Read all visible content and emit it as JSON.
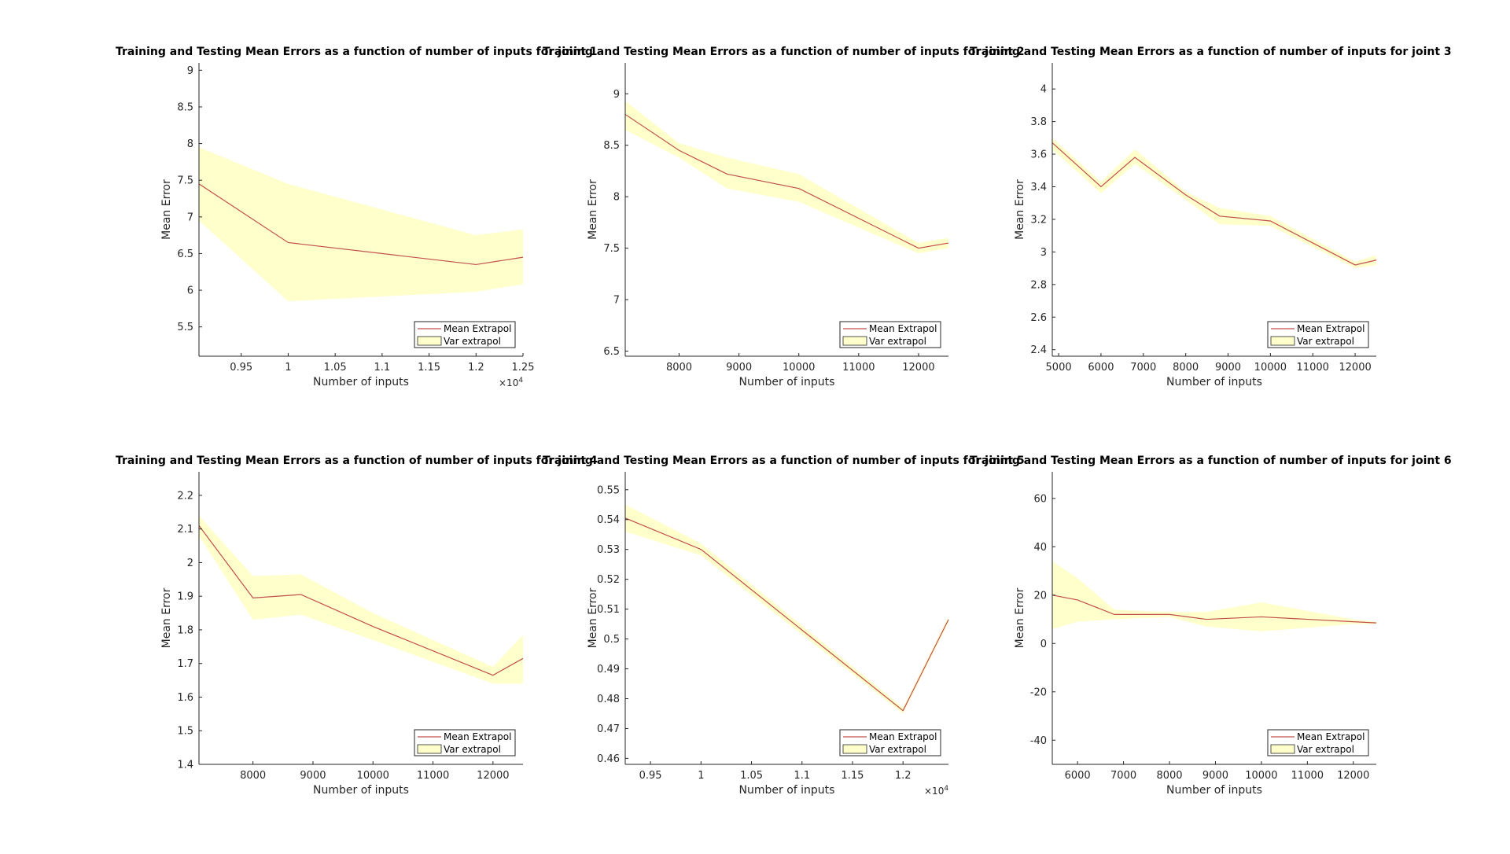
{
  "colors": {
    "line": "#c0504d",
    "band": "#ffffcc",
    "band_edge": "#f0e87a",
    "axis": "#262626"
  },
  "legend": {
    "mean_label": "Mean Extrapol",
    "var_label": "Var extrapol"
  },
  "chart_data": [
    {
      "type": "line",
      "title": "Training and Testing Mean Errors as a function of number of inputs for joint 1",
      "xlabel": "Number of inputs",
      "ylabel": "Mean Error",
      "xlim": [
        9050,
        12500
      ],
      "ylim": [
        5.1,
        9.1
      ],
      "xticks": [
        9500,
        10000,
        10500,
        11000,
        11500,
        12000,
        12500
      ],
      "xtick_labels": [
        "0.95",
        "1",
        "1.05",
        "1.1",
        "1.15",
        "1.2",
        "1.25"
      ],
      "x_exponent": "10^4",
      "yticks": [
        5.5,
        6,
        6.5,
        7,
        7.5,
        8,
        8.5,
        9
      ],
      "ytick_labels": [
        "5.5",
        "6",
        "6.5",
        "7",
        "7.5",
        "8",
        "8.5",
        "9"
      ],
      "legend_location": "bottom-right",
      "grid": false,
      "x": [
        9050,
        10000,
        12000,
        12500
      ],
      "series": [
        {
          "name": "Mean Extrapol",
          "values": [
            7.45,
            6.65,
            6.35,
            6.45
          ]
        },
        {
          "name": "Var extrapol",
          "upper": [
            7.95,
            7.45,
            6.75,
            6.83
          ],
          "lower": [
            6.95,
            5.85,
            5.98,
            6.08
          ]
        }
      ]
    },
    {
      "type": "line",
      "title": "Training and Testing Mean Errors as a function of number of inputs for joint 2",
      "xlabel": "Number of inputs",
      "ylabel": "Mean Error",
      "xlim": [
        7100,
        12500
      ],
      "ylim": [
        6.45,
        9.3
      ],
      "xticks": [
        8000,
        9000,
        10000,
        11000,
        12000
      ],
      "xtick_labels": [
        "8000",
        "9000",
        "10000",
        "11000",
        "12000"
      ],
      "x_exponent": "",
      "yticks": [
        6.5,
        7,
        7.5,
        8,
        8.5,
        9
      ],
      "ytick_labels": [
        "6.5",
        "7",
        "7.5",
        "8",
        "8.5",
        "9"
      ],
      "legend_location": "bottom-right",
      "grid": false,
      "x": [
        7100,
        8000,
        8800,
        10000,
        12000,
        12500
      ],
      "series": [
        {
          "name": "Mean Extrapol",
          "values": [
            8.8,
            8.45,
            8.22,
            8.08,
            7.5,
            7.55
          ]
        },
        {
          "name": "Var extrapol",
          "upper": [
            8.93,
            8.52,
            8.38,
            8.22,
            7.55,
            7.6
          ],
          "lower": [
            8.65,
            8.38,
            8.08,
            7.95,
            7.45,
            7.5
          ]
        }
      ]
    },
    {
      "type": "line",
      "title": "Training and Testing Mean Errors as a function of number of inputs for joint 3",
      "xlabel": "Number of inputs",
      "ylabel": "Mean Error",
      "xlim": [
        4850,
        12500
      ],
      "ylim": [
        2.36,
        4.16
      ],
      "xticks": [
        5000,
        6000,
        7000,
        8000,
        9000,
        10000,
        11000,
        12000
      ],
      "xtick_labels": [
        "5000",
        "6000",
        "7000",
        "8000",
        "9000",
        "10000",
        "11000",
        "12000"
      ],
      "x_exponent": "",
      "yticks": [
        2.4,
        2.6,
        2.8,
        3,
        3.2,
        3.4,
        3.6,
        3.8,
        4
      ],
      "ytick_labels": [
        "2.4",
        "2.6",
        "2.8",
        "3",
        "3.2",
        "3.4",
        "3.6",
        "3.8",
        "4"
      ],
      "legend_location": "bottom-right",
      "grid": false,
      "x": [
        4850,
        6000,
        6800,
        8000,
        8800,
        10000,
        12000,
        12500
      ],
      "series": [
        {
          "name": "Mean Extrapol",
          "values": [
            3.67,
            3.4,
            3.58,
            3.35,
            3.22,
            3.19,
            2.92,
            2.95
          ]
        },
        {
          "name": "Var extrapol",
          "upper": [
            3.7,
            3.43,
            3.63,
            3.37,
            3.27,
            3.22,
            2.94,
            2.98
          ],
          "lower": [
            3.63,
            3.36,
            3.54,
            3.32,
            3.17,
            3.16,
            2.9,
            2.92
          ]
        }
      ]
    },
    {
      "type": "line",
      "title": "Training and Testing Mean Errors as a function of number of inputs for joint 4",
      "xlabel": "Number of inputs",
      "ylabel": "Mean Error",
      "xlim": [
        7100,
        12500
      ],
      "ylim": [
        1.4,
        2.27
      ],
      "xticks": [
        8000,
        9000,
        10000,
        11000,
        12000
      ],
      "xtick_labels": [
        "8000",
        "9000",
        "10000",
        "11000",
        "12000"
      ],
      "x_exponent": "",
      "yticks": [
        1.4,
        1.5,
        1.6,
        1.7,
        1.8,
        1.9,
        2,
        2.1,
        2.2
      ],
      "ytick_labels": [
        "1.4",
        "1.5",
        "1.6",
        "1.7",
        "1.8",
        "1.9",
        "2",
        "2.1",
        "2.2"
      ],
      "legend_location": "bottom-right",
      "grid": false,
      "x": [
        7100,
        8000,
        8800,
        10000,
        12000,
        12500
      ],
      "series": [
        {
          "name": "Mean Extrapol",
          "values": [
            2.11,
            1.895,
            1.905,
            1.81,
            1.665,
            1.715
          ]
        },
        {
          "name": "Var extrapol",
          "upper": [
            2.14,
            1.96,
            1.965,
            1.85,
            1.69,
            1.785
          ],
          "lower": [
            2.08,
            1.83,
            1.845,
            1.77,
            1.64,
            1.64
          ]
        }
      ]
    },
    {
      "type": "line",
      "title": "Training and Testing Mean Errors as a function of number of inputs for joint 5",
      "xlabel": "Number of inputs",
      "ylabel": "Mean Error",
      "xlim": [
        9250,
        12450
      ],
      "ylim": [
        0.458,
        0.556
      ],
      "xticks": [
        9500,
        10000,
        10500,
        11000,
        11500,
        12000
      ],
      "xtick_labels": [
        "0.95",
        "1",
        "1.05",
        "1.1",
        "1.15",
        "1.2"
      ],
      "x_exponent": "10^4",
      "yticks": [
        0.46,
        0.47,
        0.48,
        0.49,
        0.5,
        0.51,
        0.52,
        0.53,
        0.54,
        0.55
      ],
      "ytick_labels": [
        "0.46",
        "0.47",
        "0.48",
        "0.49",
        "0.5",
        "0.51",
        "0.52",
        "0.53",
        "0.54",
        "0.55"
      ],
      "legend_location": "bottom-right",
      "grid": false,
      "x": [
        9250,
        10000,
        12000,
        12450
      ],
      "series": [
        {
          "name": "Mean Extrapol",
          "values": [
            0.5405,
            0.53,
            0.476,
            0.5065
          ]
        },
        {
          "name": "Var extrapol",
          "upper": [
            0.545,
            0.532,
            0.477,
            0.5075
          ],
          "lower": [
            0.536,
            0.528,
            0.475,
            0.5055
          ]
        }
      ]
    },
    {
      "type": "line",
      "title": "Training and Testing Mean Errors as a function of number of inputs for joint 6",
      "xlabel": "Number of inputs",
      "ylabel": "Mean Error",
      "xlim": [
        5450,
        12500
      ],
      "ylim": [
        -50,
        71
      ],
      "xticks": [
        6000,
        7000,
        8000,
        9000,
        10000,
        11000,
        12000
      ],
      "xtick_labels": [
        "6000",
        "7000",
        "8000",
        "9000",
        "10000",
        "11000",
        "12000"
      ],
      "x_exponent": "",
      "yticks": [
        -40,
        -20,
        0,
        20,
        40,
        60
      ],
      "ytick_labels": [
        "-40",
        "-20",
        "0",
        "20",
        "40",
        "60"
      ],
      "legend_location": "bottom-right",
      "grid": false,
      "x": [
        5450,
        6000,
        6800,
        8000,
        8800,
        10000,
        12000,
        12500
      ],
      "series": [
        {
          "name": "Mean Extrapol",
          "values": [
            20,
            18,
            12,
            12,
            10,
            11,
            9,
            8.5
          ]
        },
        {
          "name": "Var extrapol",
          "upper": [
            34,
            27,
            14,
            13,
            13,
            17,
            10,
            9
          ],
          "lower": [
            6,
            9,
            10,
            11,
            7,
            5,
            8,
            8
          ]
        }
      ]
    }
  ]
}
